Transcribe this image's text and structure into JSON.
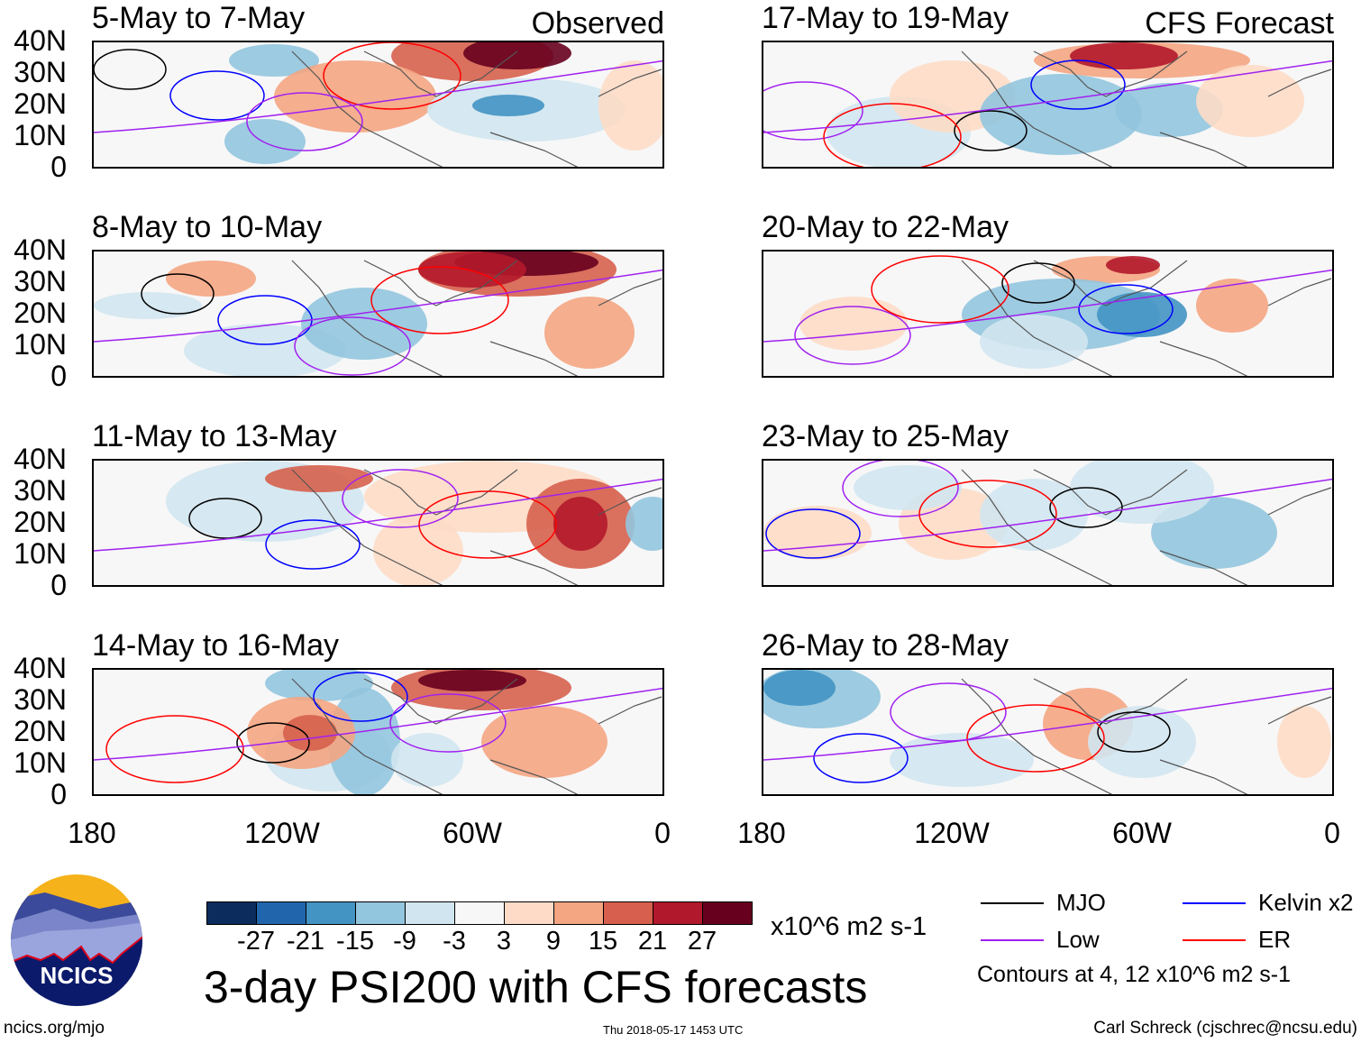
{
  "panels": [
    {
      "title": "5-May to 7-May",
      "label": "Observed"
    },
    {
      "title": "8-May to 10-May",
      "label": ""
    },
    {
      "title": "11-May to 13-May",
      "label": ""
    },
    {
      "title": "14-May to 16-May",
      "label": ""
    },
    {
      "title": "17-May to 19-May",
      "label": "CFS Forecast"
    },
    {
      "title": "20-May to 22-May",
      "label": ""
    },
    {
      "title": "23-May to 25-May",
      "label": ""
    },
    {
      "title": "26-May to 28-May",
      "label": ""
    }
  ],
  "lat_labels": [
    "40N",
    "30N",
    "20N",
    "10N",
    "0"
  ],
  "lon_labels": [
    "180",
    "120W",
    "60W",
    "0"
  ],
  "colorbar": {
    "colors": [
      "#0b2c5c",
      "#2166ac",
      "#4393c3",
      "#92c5de",
      "#d1e5f0",
      "#f7f7f7",
      "#fddbc7",
      "#f4a582",
      "#d6604d",
      "#b2182b",
      "#67001f"
    ],
    "ticks": [
      "-27",
      "-21",
      "-15",
      "-9",
      "-3",
      "3",
      "9",
      "15",
      "21",
      "27"
    ],
    "units": "x10^6 m2 s-1"
  },
  "title": "3-day PSI200 with CFS forecasts",
  "legend": {
    "items": [
      {
        "label": "MJO",
        "color": "#000000"
      },
      {
        "label": "Kelvin x2",
        "color": "#0000ff"
      },
      {
        "label": "Low",
        "color": "#a020f0"
      },
      {
        "label": "ER",
        "color": "#ff0000"
      }
    ],
    "note": "Contours at 4, 12 x10^6 m2 s-1"
  },
  "logo": {
    "text": "NCICS"
  },
  "footer": {
    "left": "ncics.org/mjo",
    "center": "Thu 2018-05-17 1453 UTC",
    "right": "Carl Schreck (cjschrec@ncsu.edu)"
  }
}
